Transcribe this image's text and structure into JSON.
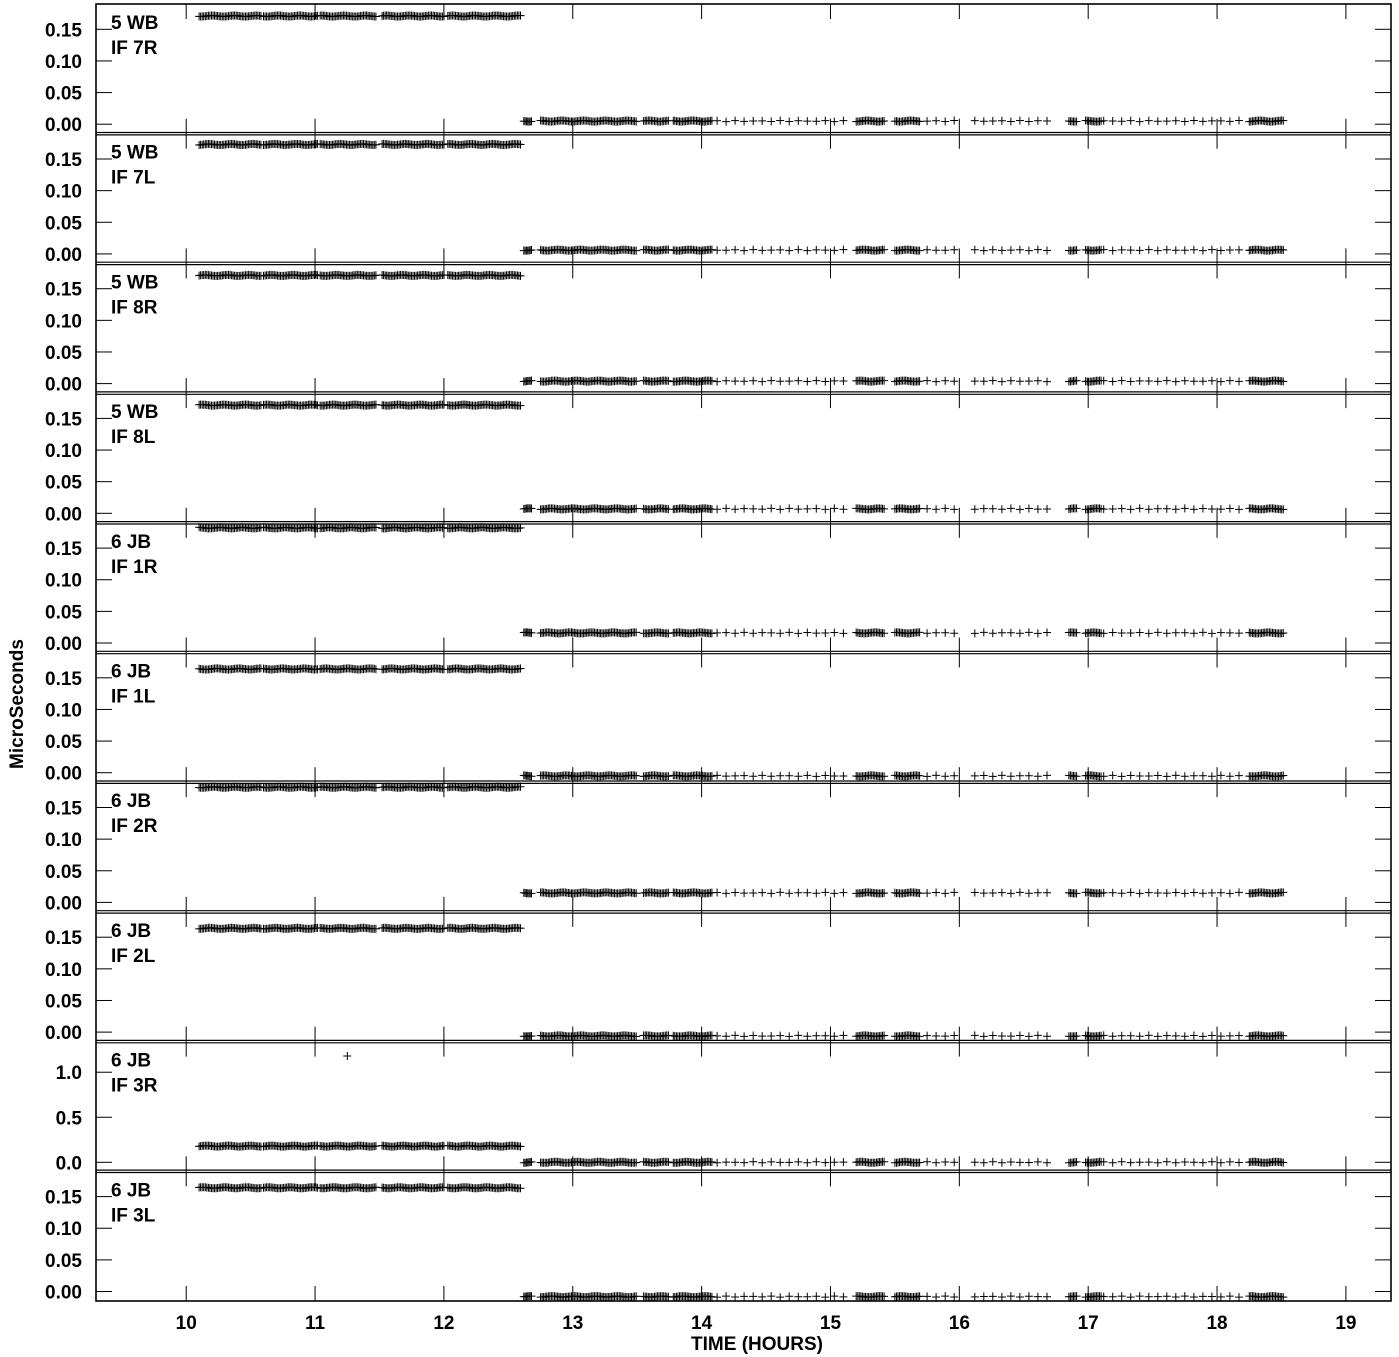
{
  "chart_data": {
    "type": "scatter",
    "xlabel": "TIME (HOURS)",
    "ylabel": "MicroSeconds",
    "xlim": [
      9.3,
      19.35
    ],
    "x_ticks": [
      10,
      11,
      12,
      13,
      14,
      15,
      16,
      17,
      18,
      19
    ],
    "x_tick_labels": [
      "10",
      "11",
      "12",
      "13",
      "14",
      "15",
      "16",
      "17",
      "18",
      "19"
    ],
    "marker": "+",
    "color": "#000000",
    "grid": false,
    "panels": [
      {
        "station": "5 WB",
        "if": "IF 7R",
        "ylim": [
          -0.015,
          0.19
        ],
        "y_ticks": [
          0.0,
          0.05,
          0.1,
          0.15
        ],
        "y_tick_labels": [
          "0.00",
          "0.05",
          "0.10",
          "0.15"
        ],
        "early_value": 0.171,
        "late_value": 0.005,
        "outliers": []
      },
      {
        "station": "5 WB",
        "if": "IF 7L",
        "ylim": [
          -0.015,
          0.19
        ],
        "y_ticks": [
          0.0,
          0.05,
          0.1,
          0.15
        ],
        "y_tick_labels": [
          "0.00",
          "0.05",
          "0.10",
          "0.15"
        ],
        "early_value": 0.173,
        "late_value": 0.006,
        "outliers": []
      },
      {
        "station": "5 WB",
        "if": "IF 8R",
        "ylim": [
          -0.015,
          0.19
        ],
        "y_ticks": [
          0.0,
          0.05,
          0.1,
          0.15
        ],
        "y_tick_labels": [
          "0.00",
          "0.05",
          "0.10",
          "0.15"
        ],
        "early_value": 0.171,
        "late_value": 0.004,
        "outliers": []
      },
      {
        "station": "5 WB",
        "if": "IF 8L",
        "ylim": [
          -0.015,
          0.19
        ],
        "y_ticks": [
          0.0,
          0.05,
          0.1,
          0.15
        ],
        "y_tick_labels": [
          "0.00",
          "0.05",
          "0.10",
          "0.15"
        ],
        "early_value": 0.171,
        "late_value": 0.007,
        "outliers": []
      },
      {
        "station": "6 JB",
        "if": "IF 1R",
        "ylim": [
          -0.015,
          0.19
        ],
        "y_ticks": [
          0.0,
          0.05,
          0.1,
          0.15
        ],
        "y_tick_labels": [
          "0.00",
          "0.05",
          "0.10",
          "0.15"
        ],
        "early_value": 0.182,
        "late_value": 0.016,
        "outliers": []
      },
      {
        "station": "6 JB",
        "if": "IF 1L",
        "ylim": [
          -0.015,
          0.19
        ],
        "y_ticks": [
          0.0,
          0.05,
          0.1,
          0.15
        ],
        "y_tick_labels": [
          "0.00",
          "0.05",
          "0.10",
          "0.15"
        ],
        "early_value": 0.164,
        "late_value": -0.005,
        "outliers": []
      },
      {
        "station": "6 JB",
        "if": "IF 2R",
        "ylim": [
          -0.015,
          0.19
        ],
        "y_ticks": [
          0.0,
          0.05,
          0.1,
          0.15
        ],
        "y_tick_labels": [
          "0.00",
          "0.05",
          "0.10",
          "0.15"
        ],
        "early_value": 0.182,
        "late_value": 0.015,
        "outliers": []
      },
      {
        "station": "6 JB",
        "if": "IF 2L",
        "ylim": [
          -0.015,
          0.19
        ],
        "y_ticks": [
          0.0,
          0.05,
          0.1,
          0.15
        ],
        "y_tick_labels": [
          "0.00",
          "0.05",
          "0.10",
          "0.15"
        ],
        "early_value": 0.164,
        "late_value": -0.006,
        "outliers": []
      },
      {
        "station": "6 JB",
        "if": "IF 3R",
        "ylim": [
          -0.1,
          1.34
        ],
        "y_ticks": [
          0.0,
          0.5,
          1.0
        ],
        "y_tick_labels": [
          "0.0",
          "0.5",
          "1.0"
        ],
        "early_value": 0.18,
        "late_value": 0.0,
        "outliers": [
          [
            11.25,
            1.18
          ]
        ]
      },
      {
        "station": "6 JB",
        "if": "IF 3L",
        "ylim": [
          -0.015,
          0.19
        ],
        "y_ticks": [
          0.0,
          0.05,
          0.1,
          0.15
        ],
        "y_tick_labels": [
          "0.00",
          "0.05",
          "0.10",
          "0.15"
        ],
        "early_value": 0.164,
        "late_value": -0.008,
        "outliers": []
      }
    ],
    "sample_segments": {
      "dense": [
        [
          10.1,
          10.58,
          0.012
        ],
        [
          10.6,
          11.02,
          0.012
        ],
        [
          11.04,
          11.48,
          0.012
        ],
        [
          11.52,
          12.0,
          0.012
        ],
        [
          12.03,
          12.6,
          0.012
        ],
        [
          12.62,
          12.68,
          0.01
        ],
        [
          12.75,
          13.0,
          0.012
        ],
        [
          13.0,
          13.5,
          0.012
        ],
        [
          13.55,
          13.75,
          0.012
        ],
        [
          13.78,
          14.08,
          0.012
        ],
        [
          15.2,
          15.42,
          0.012
        ],
        [
          15.5,
          15.7,
          0.012
        ],
        [
          16.85,
          16.92,
          0.012
        ],
        [
          16.98,
          17.1,
          0.012
        ],
        [
          18.25,
          18.52,
          0.012
        ]
      ],
      "sparse": [
        [
          14.12,
          15.15,
          0.07
        ],
        [
          15.75,
          16.0,
          0.07
        ],
        [
          16.12,
          16.72,
          0.07
        ],
        [
          17.12,
          18.22,
          0.07
        ]
      ]
    }
  }
}
